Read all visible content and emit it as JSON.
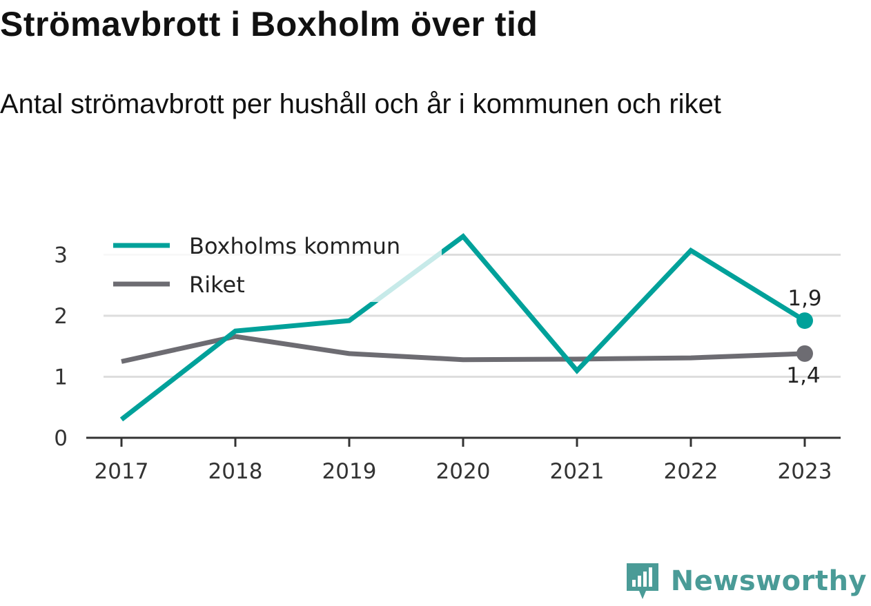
{
  "title": "Strömavbrott i Boxholm över tid",
  "subtitle": "Antal strömavbrott per hushåll och år i kommunen och riket",
  "brand": {
    "name": "Newsworthy",
    "icon": "newsworthy-logo-icon"
  },
  "colors": {
    "kommun": "#00a19a",
    "riket": "#6d6c72",
    "grid": "#dddddd",
    "axis": "#333333"
  },
  "chart_data": {
    "type": "line",
    "x": [
      "2017",
      "2018",
      "2019",
      "2020",
      "2021",
      "2022",
      "2023"
    ],
    "series": [
      {
        "name": "Boxholms kommun",
        "values": [
          0.3,
          1.75,
          1.92,
          3.3,
          1.1,
          3.07,
          1.92
        ],
        "end_label": "1,9"
      },
      {
        "name": "Riket",
        "values": [
          1.25,
          1.66,
          1.38,
          1.28,
          1.29,
          1.31,
          1.38
        ],
        "end_label": "1,4"
      }
    ],
    "ylim": [
      0,
      3.3
    ],
    "yticks": [
      "0",
      "1",
      "2",
      "3"
    ],
    "grid": true,
    "legend": "top-left"
  }
}
